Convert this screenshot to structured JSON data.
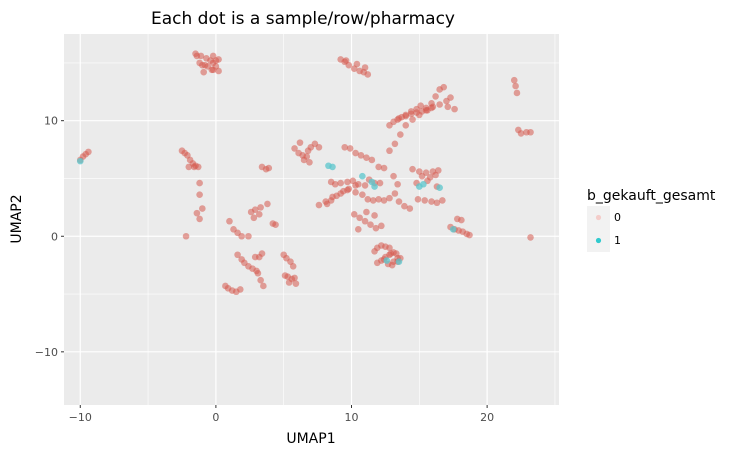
{
  "chart_data": {
    "type": "scatter",
    "title": "Each dot is a sample/row/pharmacy",
    "xlabel": "UMAP1",
    "ylabel": "UMAP2",
    "xlim": [
      -11.2,
      25.3
    ],
    "ylim": [
      -14.6,
      17.5
    ],
    "xticks": [
      -10,
      0,
      10,
      20
    ],
    "xtick_labels": [
      "−10",
      "0",
      "10",
      "20"
    ],
    "yticks": [
      -10,
      0,
      10
    ],
    "ytick_labels": [
      "−10",
      "0",
      "10"
    ],
    "grid": true,
    "legend": {
      "title": "b_gekauft_gesamt",
      "position": "right",
      "entries": [
        {
          "label": "0",
          "color": "#f8766d"
        },
        {
          "label": "1",
          "color": "#00bfc4"
        }
      ]
    },
    "colors": {
      "0": "#d65a4f",
      "1": "#5bc6cc",
      "panel": "#ebebeb",
      "grid": "#ffffff"
    },
    "series": [
      {
        "name": "0",
        "x": [
          -1.5,
          -1.1,
          -0.7,
          -0.4,
          -0.2,
          -1.2,
          -0.8,
          -1.0,
          -0.6,
          -0.3,
          -1.4,
          -0.9,
          -10.0,
          -9.8,
          -9.6,
          -9.4,
          9.2,
          9.5,
          9.8,
          10.2,
          10.6,
          10.9,
          11.2,
          9.6,
          10.4,
          11.0,
          22.0,
          22.1,
          22.2,
          22.3,
          22.5,
          22.9,
          23.2,
          -2.5,
          -2.3,
          -2.1,
          -1.9,
          -1.7,
          -1.5,
          -1.3,
          -1.6,
          -2.0,
          -1.2,
          -1.2,
          -1.0,
          -1.4,
          -1.2,
          -2.2,
          3.4,
          3.7,
          3.9,
          2.6,
          2.9,
          3.3,
          3.8,
          3.2,
          2.8,
          4.2,
          4.4,
          1.0,
          1.3,
          1.6,
          1.9,
          2.4,
          0.7,
          0.9,
          1.2,
          1.5,
          1.8,
          1.6,
          1.9,
          2.1,
          2.4,
          2.7,
          3.0,
          3.2,
          3.4,
          3.1,
          3.3,
          3.5,
          2.9,
          5.0,
          5.2,
          5.5,
          5.7,
          5.3,
          5.1,
          5.6,
          5.4,
          5.9,
          5.8,
          5.8,
          6.1,
          6.4,
          6.7,
          7.0,
          7.3,
          7.6,
          6.2,
          6.8,
          6.5,
          6.9,
          9.5,
          9.9,
          10.3,
          10.7,
          11.1,
          11.5,
          12.0,
          12.4,
          8.5,
          8.8,
          9.2,
          9.7,
          10.1,
          10.5,
          11.0,
          11.3,
          11.7,
          12.1,
          8.2,
          8.5,
          8.9,
          9.4,
          9.8,
          10.3,
          10.8,
          11.2,
          11.6,
          12.0,
          12.4,
          12.8,
          10.2,
          10.6,
          11.0,
          11.4,
          11.8,
          12.2,
          10.5,
          11.1,
          11.7,
          11.9,
          12.2,
          12.5,
          12.9,
          13.3,
          13.6,
          12.7,
          13.1,
          12.4,
          13.4,
          12.8,
          13.0,
          12.8,
          13.2,
          13.6,
          14.0,
          14.5,
          15.0,
          15.5,
          16.0,
          16.5,
          17.0,
          17.3,
          14.5,
          15.0,
          15.5,
          16.0,
          16.4,
          15.2,
          15.8,
          16.2,
          14.8,
          15.6,
          16.3,
          14.9,
          15.4,
          15.9,
          16.3,
          16.7,
          17.3,
          17.6,
          17.9,
          18.2,
          18.5,
          18.7,
          17.8,
          18.1,
          13.5,
          14.0,
          14.4,
          14.8,
          15.1,
          15.5,
          15.9,
          16.2,
          16.5,
          16.8,
          17.1,
          17.6,
          12.8,
          13.1,
          13.4,
          13.7,
          14.0,
          14.4,
          14.8,
          15.2,
          15.6,
          15.9,
          13.2,
          13.5,
          13.9,
          14.3,
          13.1,
          13.4,
          23.2,
          11.7,
          11.9,
          12.2,
          12.5,
          12.8,
          13.1,
          13.4,
          7.6,
          8.1,
          8.6,
          9.2,
          9.7,
          10.3,
          -0.2,
          -0.2,
          0.0,
          0.0,
          0.2,
          0.2
        ],
        "y": [
          15.8,
          15.6,
          15.4,
          15.2,
          15.0,
          15.0,
          14.8,
          14.8,
          14.7,
          14.4,
          15.6,
          14.2,
          6.6,
          6.9,
          7.1,
          7.3,
          15.3,
          15.1,
          14.8,
          14.5,
          14.3,
          14.2,
          14.0,
          15.2,
          14.9,
          14.6,
          13.5,
          13.0,
          12.4,
          9.2,
          8.9,
          9.0,
          9.0,
          7.4,
          7.2,
          7.0,
          6.6,
          6.3,
          6.1,
          6.0,
          6.0,
          6.0,
          4.6,
          3.6,
          2.4,
          2.0,
          1.5,
          0.0,
          6.0,
          5.8,
          5.9,
          2.1,
          2.3,
          2.5,
          2.8,
          1.9,
          1.6,
          1.1,
          1.0,
          1.3,
          0.6,
          0.3,
          0.0,
          0.0,
          -4.3,
          -4.5,
          -4.7,
          -4.8,
          -4.6,
          -1.6,
          -2.0,
          -2.3,
          -2.6,
          -2.8,
          -3.0,
          -1.8,
          -1.5,
          -3.2,
          -3.8,
          -4.3,
          -1.8,
          -1.6,
          -1.9,
          -2.2,
          -2.6,
          -3.5,
          -3.4,
          -3.7,
          -4.0,
          -4.1,
          -3.6,
          7.6,
          7.2,
          7.0,
          6.9,
          7.7,
          8.0,
          7.7,
          8.1,
          7.4,
          6.6,
          6.4,
          7.7,
          7.6,
          7.2,
          7.0,
          6.8,
          6.6,
          6.0,
          5.9,
          4.7,
          4.5,
          4.6,
          4.7,
          4.8,
          4.5,
          4.4,
          4.9,
          4.6,
          4.6,
          2.8,
          3.1,
          3.5,
          3.9,
          4.1,
          3.8,
          3.6,
          3.2,
          3.1,
          3.2,
          3.1,
          3.3,
          1.9,
          1.6,
          1.3,
          1.0,
          0.7,
          0.9,
          0.6,
          2.1,
          1.8,
          -2.3,
          -2.1,
          -1.8,
          -1.5,
          -1.5,
          -1.9,
          -2.4,
          -2.2,
          -2.0,
          -2.2,
          -1.6,
          -2.5,
          7.4,
          8.0,
          8.8,
          9.6,
          10.1,
          10.5,
          10.9,
          11.2,
          11.4,
          11.7,
          12.0,
          5.8,
          5.6,
          5.5,
          5.6,
          5.7,
          5.2,
          5.1,
          5.3,
          4.6,
          4.8,
          4.3,
          3.2,
          3.1,
          3.0,
          2.9,
          3.1,
          0.8,
          0.6,
          0.5,
          0.4,
          0.2,
          0.1,
          1.5,
          1.4,
          10.2,
          10.4,
          10.8,
          11.0,
          11.3,
          11.1,
          11.5,
          12.1,
          12.7,
          12.9,
          11.2,
          11.0,
          9.6,
          9.9,
          10.1,
          10.3,
          10.5,
          10.6,
          10.7,
          10.8,
          10.9,
          11.1,
          3.7,
          3.0,
          2.6,
          2.4,
          5.2,
          4.5,
          -0.1,
          -1.3,
          -1.0,
          -0.8,
          -0.9,
          -1.0,
          -1.4,
          -1.9,
          2.7,
          3.0,
          3.4,
          3.7,
          4.0,
          4.4,
          15.6,
          14.4,
          15.2,
          14.7,
          15.3,
          14.3
        ]
      },
      {
        "name": "1",
        "x": [
          8.3,
          8.6,
          10.8,
          11.5,
          15.0,
          15.3,
          16.5,
          17.5,
          12.6,
          13.5,
          11.7,
          -10.0
        ],
        "y": [
          6.1,
          6.0,
          5.2,
          4.7,
          4.3,
          4.5,
          4.2,
          0.6,
          -2.1,
          -2.2,
          4.3,
          6.5
        ]
      }
    ]
  }
}
